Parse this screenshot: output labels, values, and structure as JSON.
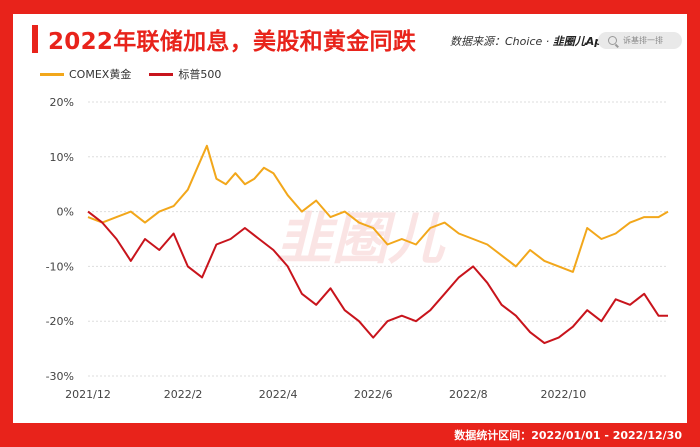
{
  "header": {
    "title": "2022年联储加息，美股和黄金同跌",
    "source_prefix": "数据来源：Choice · ",
    "source_brand": "韭圈儿App",
    "search_placeholder": "诉基排一排"
  },
  "watermark": "韭圈儿",
  "footer": {
    "period": "数据统计区间：2022/01/01 - 2022/12/30"
  },
  "colors": {
    "background": "#e8231b",
    "gold_series": "#f2a71b",
    "sp500_series": "#c8141c"
  },
  "chart_data": {
    "type": "line",
    "title": "2022年联储加息，美股和黄金同跌",
    "xlabel": "",
    "ylabel": "",
    "ylim": [
      -30,
      20
    ],
    "yticks": [
      "20%",
      "10%",
      "0%",
      "-10%",
      "-20%",
      "-30%"
    ],
    "ytick_values": [
      20,
      10,
      0,
      -10,
      -20,
      -30
    ],
    "xticks": [
      "2021/12",
      "2022/2",
      "2022/4",
      "2022/6",
      "2022/8",
      "2022/10"
    ],
    "xtick_months": [
      0,
      2,
      4,
      6,
      8,
      10
    ],
    "x_months_range": [
      0,
      12.2
    ],
    "grid": true,
    "legend_position": "top-left",
    "series": [
      {
        "name": "COMEX黄金",
        "x": [
          0,
          0.3,
          0.6,
          0.9,
          1.2,
          1.5,
          1.8,
          2.1,
          2.3,
          2.5,
          2.7,
          2.9,
          3.1,
          3.3,
          3.5,
          3.7,
          3.9,
          4.2,
          4.5,
          4.8,
          5.1,
          5.4,
          5.7,
          6.0,
          6.3,
          6.6,
          6.9,
          7.2,
          7.5,
          7.8,
          8.1,
          8.4,
          8.7,
          9.0,
          9.3,
          9.6,
          9.9,
          10.2,
          10.5,
          10.8,
          11.1,
          11.4,
          11.7,
          12.0,
          12.2
        ],
        "values": [
          -1,
          -2,
          -1,
          0,
          -2,
          0,
          1,
          4,
          8,
          12,
          6,
          5,
          7,
          5,
          6,
          8,
          7,
          3,
          0,
          2,
          -1,
          0,
          -2,
          -3,
          -6,
          -5,
          -6,
          -3,
          -2,
          -4,
          -5,
          -6,
          -8,
          -10,
          -7,
          -9,
          -10,
          -11,
          -3,
          -5,
          -4,
          -2,
          -1,
          -1,
          0
        ]
      },
      {
        "name": "标普500",
        "x": [
          0,
          0.3,
          0.6,
          0.9,
          1.2,
          1.5,
          1.8,
          2.1,
          2.4,
          2.7,
          3.0,
          3.3,
          3.6,
          3.9,
          4.2,
          4.5,
          4.8,
          5.1,
          5.4,
          5.7,
          6.0,
          6.3,
          6.6,
          6.9,
          7.2,
          7.5,
          7.8,
          8.1,
          8.4,
          8.7,
          9.0,
          9.3,
          9.6,
          9.9,
          10.2,
          10.5,
          10.8,
          11.1,
          11.4,
          11.7,
          12.0,
          12.2
        ],
        "values": [
          0,
          -2,
          -5,
          -9,
          -5,
          -7,
          -4,
          -10,
          -12,
          -6,
          -5,
          -3,
          -5,
          -7,
          -10,
          -15,
          -17,
          -14,
          -18,
          -20,
          -23,
          -20,
          -19,
          -20,
          -18,
          -15,
          -12,
          -10,
          -13,
          -17,
          -19,
          -22,
          -24,
          -23,
          -21,
          -18,
          -20,
          -16,
          -17,
          -15,
          -19,
          -19
        ]
      }
    ]
  }
}
